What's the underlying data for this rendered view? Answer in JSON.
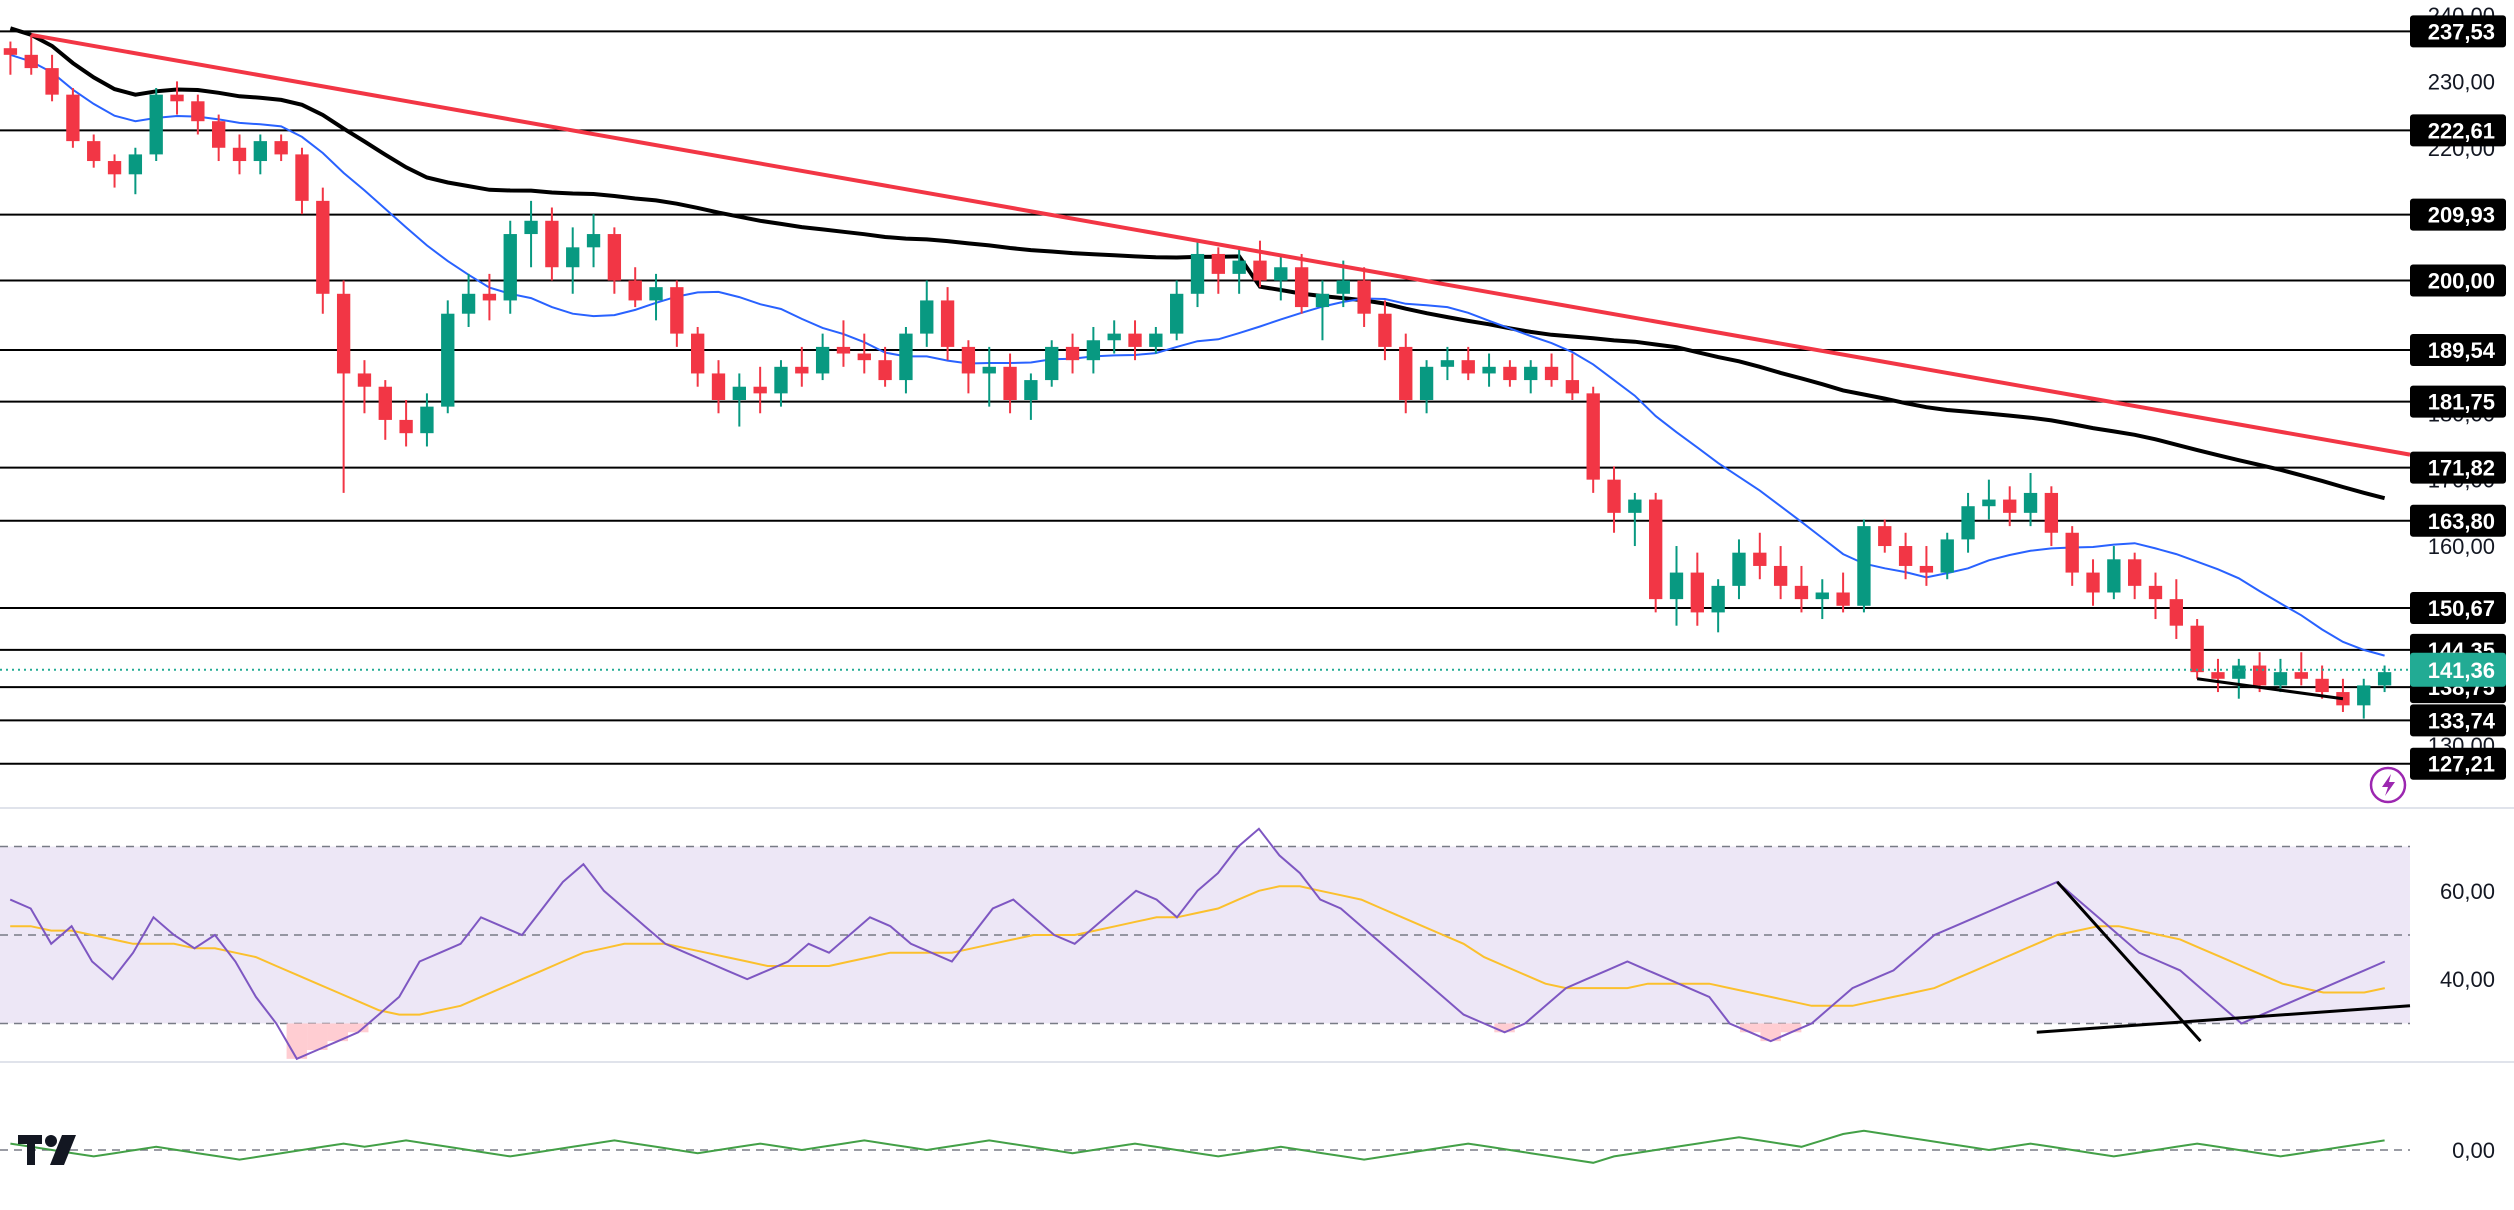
{
  "chart_data": [
    {
      "type": "candlestick",
      "title": "",
      "y_axis": {
        "ticks": [
          "240,00",
          "230,00",
          "220,00",
          "200,00",
          "190,00",
          "180,00",
          "170,00",
          "160,00",
          "140,00",
          "130,00"
        ],
        "range": [
          124,
          240
        ]
      },
      "horizontal_levels": [
        "237,53",
        "222,61",
        "209,93",
        "200,00",
        "189,54",
        "181,75",
        "171,82",
        "163,80",
        "150,67",
        "144,35",
        "138,75",
        "133,74",
        "127,21"
      ],
      "last_price": "141,36",
      "candles": [
        [
          235,
          236,
          231,
          234
        ],
        [
          234,
          237,
          231,
          232
        ],
        [
          232,
          234,
          227,
          228
        ],
        [
          228,
          229,
          220,
          221
        ],
        [
          221,
          222,
          217,
          218
        ],
        [
          218,
          219,
          214,
          216
        ],
        [
          216,
          220,
          213,
          219
        ],
        [
          219,
          229,
          218,
          228
        ],
        [
          228,
          230,
          225,
          227
        ],
        [
          227,
          228,
          222,
          224
        ],
        [
          224,
          225,
          218,
          220
        ],
        [
          220,
          222,
          216,
          218
        ],
        [
          218,
          222,
          216,
          221
        ],
        [
          221,
          222,
          218,
          219
        ],
        [
          219,
          220,
          210,
          212
        ],
        [
          212,
          214,
          195,
          198
        ],
        [
          198,
          200,
          168,
          186
        ],
        [
          186,
          188,
          180,
          184
        ],
        [
          184,
          185,
          176,
          179
        ],
        [
          179,
          182,
          175,
          177
        ],
        [
          177,
          183,
          175,
          181
        ],
        [
          181,
          197,
          180,
          195
        ],
        [
          195,
          201,
          193,
          198
        ],
        [
          198,
          201,
          194,
          197
        ],
        [
          197,
          209,
          195,
          207
        ],
        [
          207,
          212,
          202,
          209
        ],
        [
          209,
          211,
          200,
          202
        ],
        [
          202,
          208,
          198,
          205
        ],
        [
          205,
          210,
          202,
          207
        ],
        [
          207,
          208,
          198,
          200
        ],
        [
          200,
          202,
          196,
          197
        ],
        [
          197,
          201,
          194,
          199
        ],
        [
          199,
          200,
          190,
          192
        ],
        [
          192,
          193,
          184,
          186
        ],
        [
          186,
          188,
          180,
          182
        ],
        [
          182,
          186,
          178,
          184
        ],
        [
          184,
          187,
          180,
          183
        ],
        [
          183,
          188,
          181,
          187
        ],
        [
          187,
          190,
          184,
          186
        ],
        [
          186,
          192,
          185,
          190
        ],
        [
          190,
          194,
          187,
          189
        ],
        [
          189,
          192,
          186,
          188
        ],
        [
          188,
          190,
          184,
          185
        ],
        [
          185,
          193,
          183,
          192
        ],
        [
          192,
          200,
          190,
          197
        ],
        [
          197,
          199,
          188,
          190
        ],
        [
          190,
          191,
          183,
          186
        ],
        [
          186,
          190,
          181,
          187
        ],
        [
          187,
          189,
          180,
          182
        ],
        [
          182,
          186,
          179,
          185
        ],
        [
          185,
          191,
          184,
          190
        ],
        [
          190,
          192,
          186,
          188
        ],
        [
          188,
          193,
          186,
          191
        ],
        [
          191,
          194,
          189,
          192
        ],
        [
          192,
          194,
          188,
          190
        ],
        [
          190,
          193,
          189,
          192
        ],
        [
          192,
          200,
          191,
          198
        ],
        [
          198,
          206,
          196,
          204
        ],
        [
          204,
          205,
          198,
          201
        ],
        [
          201,
          205,
          198,
          203
        ],
        [
          203,
          206,
          199,
          200
        ],
        [
          200,
          204,
          197,
          202
        ],
        [
          202,
          204,
          195,
          196
        ],
        [
          196,
          200,
          191,
          198
        ],
        [
          198,
          203,
          196,
          200
        ],
        [
          200,
          202,
          193,
          195
        ],
        [
          195,
          197,
          188,
          190
        ],
        [
          190,
          192,
          180,
          182
        ],
        [
          182,
          188,
          180,
          187
        ],
        [
          187,
          190,
          185,
          188
        ],
        [
          188,
          190,
          185,
          186
        ],
        [
          186,
          189,
          184,
          187
        ],
        [
          187,
          188,
          184,
          185
        ],
        [
          185,
          188,
          183,
          187
        ],
        [
          187,
          189,
          184,
          185
        ],
        [
          185,
          189,
          182,
          183
        ],
        [
          183,
          184,
          168,
          170
        ],
        [
          170,
          172,
          162,
          165
        ],
        [
          165,
          168,
          160,
          167
        ],
        [
          167,
          168,
          150,
          152
        ],
        [
          152,
          160,
          148,
          156
        ],
        [
          156,
          159,
          148,
          150
        ],
        [
          150,
          155,
          147,
          154
        ],
        [
          154,
          161,
          152,
          159
        ],
        [
          159,
          162,
          155,
          157
        ],
        [
          157,
          160,
          152,
          154
        ],
        [
          154,
          157,
          150,
          152
        ],
        [
          152,
          155,
          149,
          153
        ],
        [
          153,
          156,
          150,
          151
        ],
        [
          151,
          164,
          150,
          163
        ],
        [
          163,
          164,
          159,
          160
        ],
        [
          160,
          162,
          155,
          157
        ],
        [
          157,
          160,
          154,
          156
        ],
        [
          156,
          162,
          155,
          161
        ],
        [
          161,
          168,
          159,
          166
        ],
        [
          166,
          170,
          164,
          167
        ],
        [
          167,
          169,
          163,
          165
        ],
        [
          165,
          171,
          163,
          168
        ],
        [
          168,
          169,
          160,
          162
        ],
        [
          162,
          163,
          154,
          156
        ],
        [
          156,
          158,
          151,
          153
        ],
        [
          153,
          160,
          152,
          158
        ],
        [
          158,
          159,
          152,
          154
        ],
        [
          154,
          156,
          149,
          152
        ],
        [
          152,
          155,
          146,
          148
        ],
        [
          148,
          149,
          140,
          141
        ],
        [
          141,
          143,
          138,
          140
        ],
        [
          140,
          143,
          137,
          142
        ],
        [
          142,
          144,
          138,
          139
        ],
        [
          139,
          143,
          138,
          141
        ],
        [
          141,
          144,
          139,
          140
        ],
        [
          140,
          142,
          137,
          138
        ],
        [
          138,
          140,
          135,
          136
        ],
        [
          136,
          140,
          134,
          139
        ],
        [
          139,
          142,
          138,
          141
        ]
      ]
    },
    {
      "type": "line",
      "title": "",
      "y_axis": {
        "ticks": [
          "60,00",
          "40,00"
        ],
        "range": [
          24,
          76
        ]
      },
      "series": [
        {
          "values": [
            58,
            56,
            48,
            52,
            44,
            40,
            46,
            54,
            50,
            47,
            50,
            44,
            36,
            30,
            22,
            24,
            26,
            28,
            32,
            36,
            44,
            46,
            48,
            54,
            52,
            50,
            56,
            62,
            66,
            60,
            56,
            52,
            48,
            46,
            44,
            42,
            40,
            42,
            44,
            48,
            46,
            50,
            54,
            52,
            48,
            46,
            44,
            50,
            56,
            58,
            54,
            50,
            48,
            52,
            56,
            60,
            58,
            54,
            60,
            64,
            70,
            74,
            68,
            64,
            58,
            56,
            52,
            48,
            44,
            40,
            36,
            32,
            30,
            28,
            30,
            34,
            38,
            40,
            42,
            44,
            42,
            40,
            38,
            36,
            30,
            28,
            26,
            28,
            30,
            34,
            38,
            40,
            42,
            46,
            50,
            52,
            54,
            56,
            58,
            60,
            62,
            58,
            54,
            50,
            46,
            44,
            42,
            38,
            34,
            30,
            32,
            34,
            36,
            38,
            40,
            42,
            44
          ]
        },
        {
          "values": [
            52,
            52,
            51,
            51,
            50,
            49,
            48,
            48,
            48,
            47,
            47,
            46,
            45,
            43,
            41,
            39,
            37,
            35,
            33,
            32,
            32,
            33,
            34,
            36,
            38,
            40,
            42,
            44,
            46,
            47,
            48,
            48,
            48,
            47,
            46,
            45,
            44,
            43,
            43,
            43,
            43,
            44,
            45,
            46,
            46,
            46,
            46,
            47,
            48,
            49,
            50,
            50,
            50,
            51,
            52,
            53,
            54,
            54,
            55,
            56,
            58,
            60,
            61,
            61,
            60,
            59,
            58,
            56,
            54,
            52,
            50,
            48,
            45,
            43,
            41,
            39,
            38,
            38,
            38,
            38,
            39,
            39,
            39,
            39,
            38,
            37,
            36,
            35,
            34,
            34,
            34,
            35,
            36,
            37,
            38,
            40,
            42,
            44,
            46,
            48,
            50,
            51,
            52,
            52,
            51,
            50,
            49,
            47,
            45,
            43,
            41,
            39,
            38,
            37,
            37,
            37,
            38
          ]
        }
      ],
      "reference_lines": [
        70,
        50,
        30
      ]
    },
    {
      "type": "line",
      "title": "",
      "y_axis": {
        "ticks": [
          "0,00"
        ]
      },
      "series": [
        {
          "values": [
            2,
            1,
            0,
            -1,
            -2,
            -1,
            0,
            1,
            0,
            -1,
            -2,
            -3,
            -2,
            -1,
            0,
            1,
            2,
            1,
            2,
            3,
            2,
            1,
            0,
            -1,
            -2,
            -1,
            0,
            1,
            2,
            3,
            2,
            1,
            0,
            -1,
            0,
            1,
            2,
            1,
            0,
            1,
            2,
            3,
            2,
            1,
            0,
            1,
            2,
            3,
            2,
            1,
            0,
            -1,
            0,
            1,
            2,
            1,
            0,
            -1,
            -2,
            -1,
            0,
            1,
            0,
            -1,
            -2,
            -3,
            -2,
            -1,
            0,
            1,
            2,
            1,
            0,
            -1,
            -2,
            -3,
            -4,
            -2,
            -1,
            0,
            1,
            2,
            3,
            4,
            3,
            2,
            1,
            3,
            5,
            6,
            5,
            4,
            3,
            2,
            1,
            0,
            1,
            2,
            1,
            0,
            -1,
            -2,
            -1,
            0,
            1,
            2,
            1,
            0,
            -1,
            -2,
            -1,
            0,
            1,
            2,
            3
          ]
        }
      ]
    }
  ],
  "ui": {
    "logo_text": "TV"
  },
  "colors": {
    "up": "#089981",
    "down": "#f23645",
    "ma_blue": "#2962ff",
    "ma_black": "#000000",
    "trend_red": "#f23645",
    "rsi": "#7e57c2",
    "rsi_ma": "#fbc02d",
    "rsi_band": "#ede7f6",
    "oversold_fill": "#ffcdd2",
    "osc": "#43a047",
    "last_price_bg": "#22ab94",
    "level_bg": "#000000"
  },
  "icons": [
    "lightning-icon",
    "tradingview-logo-icon"
  ]
}
